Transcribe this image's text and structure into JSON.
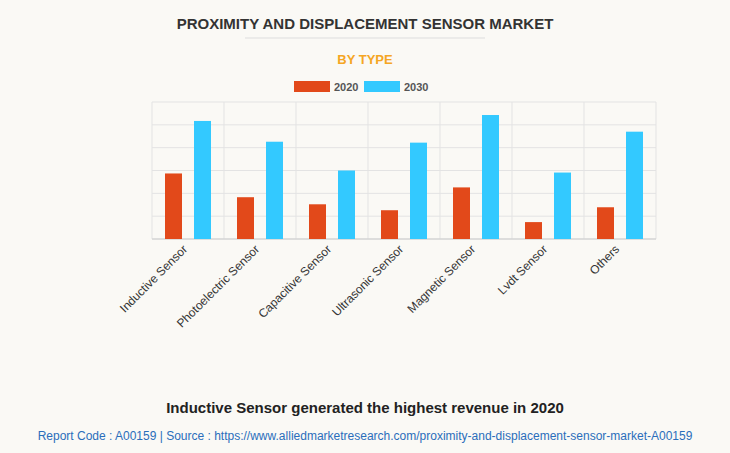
{
  "chart_data": {
    "type": "bar",
    "title": "PROXIMITY AND DISPLACEMENT SENSOR MARKET",
    "subtitle": "BY TYPE",
    "annotations": [
      "Inductive Sensor generated the highest revenue in 2020",
      "Report Code : A00159  |  Source : https://www.alliedmarketresearch.com/proximity-and-displacement-sensor-market-A00159"
    ],
    "categories": [
      "Inductive Sensor",
      "Photoelectric Sensor",
      "Capacitive Sensor",
      "Ultrasonic Sensor",
      "Magnetic Sensor",
      "Lvdt Sensor",
      "Others"
    ],
    "series": [
      {
        "name": "2020",
        "color": "#e2491a",
        "values": [
          2.87,
          1.83,
          1.52,
          1.26,
          2.26,
          0.74,
          1.39
        ]
      },
      {
        "name": "2030",
        "color": "#33c9ff",
        "values": [
          5.17,
          4.26,
          3.0,
          4.22,
          5.43,
          2.91,
          4.7
        ]
      }
    ],
    "ylim": [
      0,
      6
    ],
    "yticks": [
      0,
      1,
      2,
      3,
      4,
      5,
      6
    ],
    "grid": true,
    "tick_labels": "x",
    "legend": "top"
  }
}
